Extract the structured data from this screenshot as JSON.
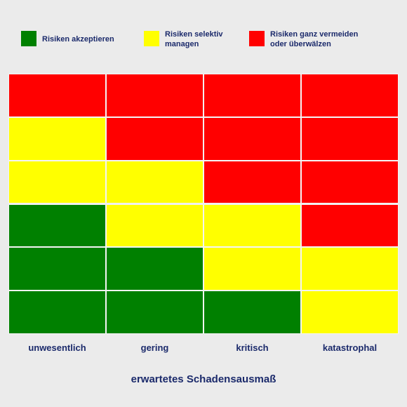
{
  "legend": [
    {
      "color": "#008000",
      "label": [
        "Risiken akzeptieren"
      ]
    },
    {
      "color": "#ffff00",
      "label": [
        "Risiken selektiv",
        "managen"
      ]
    },
    {
      "color": "#ff0000",
      "label": [
        "Risiken ganz vermeiden",
        "oder überwälzen"
      ]
    }
  ],
  "matrix": {
    "rows": [
      [
        "#ff0000",
        "#ff0000",
        "#ff0000",
        "#ff0000"
      ],
      [
        "#ffff00",
        "#ff0000",
        "#ff0000",
        "#ff0000"
      ],
      [
        "#ffff00",
        "#ffff00",
        "#ff0000",
        "#ff0000"
      ],
      [
        "#008000",
        "#ffff00",
        "#ffff00",
        "#ff0000"
      ],
      [
        "#008000",
        "#008000",
        "#ffff00",
        "#ffff00"
      ],
      [
        "#008000",
        "#008000",
        "#008000",
        "#ffff00"
      ]
    ],
    "columns": [
      "unwesentlich",
      "gering",
      "kritisch",
      "katastrophal"
    ],
    "axis_title": "erwartetes Schadensausmaß"
  }
}
